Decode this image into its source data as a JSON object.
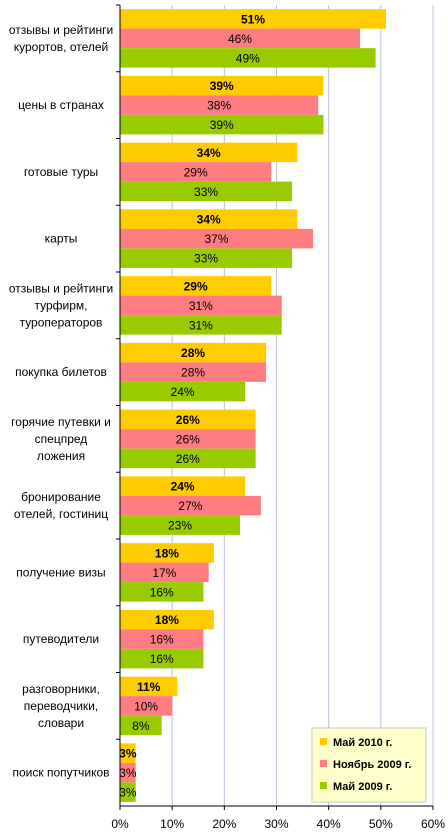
{
  "chart_data": {
    "type": "bar",
    "orientation": "horizontal",
    "categories": [
      "отзывы и рейтинги\nкурортов, отелей",
      "цены в странах",
      "готовые туры",
      "карты",
      "отзывы и рейтинги\nтурфирм,\nтуроператоров",
      "покупка билетов",
      "горячие путевки и\nспецпред\nложения",
      "бронирование\nотелей, гостиниц",
      "получение визы",
      "путеводители",
      "разговорники,\nпереводчики,\nсловари",
      "поиск попутчиков"
    ],
    "series": [
      {
        "name": "Май 2010 г.",
        "color": "#FFCC00",
        "values": [
          51,
          39,
          34,
          34,
          29,
          28,
          26,
          24,
          18,
          18,
          11,
          3
        ],
        "labels": [
          "51%",
          "39%",
          "34%",
          "34%",
          "29%",
          "28%",
          "26%",
          "24%",
          "18%",
          "18%",
          "11%",
          "3%"
        ]
      },
      {
        "name": "Ноябрь 2009 г.",
        "color": "#FF7C80",
        "values": [
          46,
          38,
          29,
          37,
          31,
          28,
          26,
          27,
          17,
          16,
          10,
          3
        ],
        "labels": [
          "46%",
          "38%",
          "29%",
          "37%",
          "31%",
          "28%",
          "26%",
          "27%",
          "17%",
          "16%",
          "10%",
          "3%"
        ]
      },
      {
        "name": "Май 2009 г.",
        "color": "#99CC00",
        "values": [
          49,
          39,
          33,
          33,
          31,
          24,
          26,
          23,
          16,
          16,
          8,
          3
        ],
        "labels": [
          "49%",
          "39%",
          "33%",
          "33%",
          "31%",
          "24%",
          "26%",
          "23%",
          "16%",
          "16%",
          "8%",
          "3%"
        ]
      }
    ],
    "xlim": [
      0,
      60
    ],
    "xticks": [
      "0%",
      "10%",
      "20%",
      "30%",
      "40%",
      "50%",
      "60%"
    ],
    "grid": true,
    "legend_position": "bottom-right",
    "legend_background": "#FFFFCC",
    "grid_color": "#C0C0E0"
  }
}
